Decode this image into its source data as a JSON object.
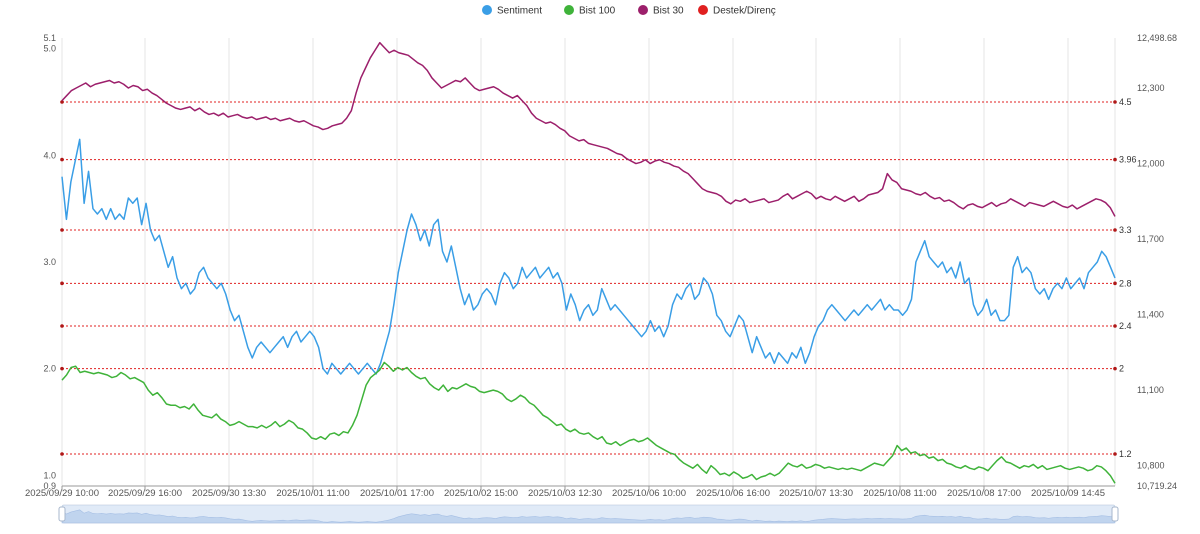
{
  "chart_data": {
    "type": "line",
    "title": "",
    "xlabel": "",
    "ylabel": "",
    "legend_position": "top-center",
    "grid": true,
    "legend": [
      {
        "name": "Sentiment",
        "color": "#3a9ee6"
      },
      {
        "name": "Bist 100",
        "color": "#3fb33a"
      },
      {
        "name": "Bist 30",
        "color": "#9c1f6b"
      },
      {
        "name": "Destek/Direnç",
        "color": "#e02020"
      }
    ],
    "x_ticks": [
      "2025/09/29 10:00",
      "2025/09/29 16:00",
      "2025/09/30 13:30",
      "2025/10/01 11:00",
      "2025/10/01 17:00",
      "2025/10/02 15:00",
      "2025/10/03 12:30",
      "2025/10/06 10:00",
      "2025/10/06 16:00",
      "2025/10/07 13:30",
      "2025/10/08 11:00",
      "2025/10/08 17:00",
      "2025/10/09 14:45"
    ],
    "y_left": {
      "min": 0.9,
      "max": 5.1,
      "tick_labels": [
        "0.9",
        "1.0",
        "2.0",
        "3.0",
        "4.0",
        "5.0",
        "5.1"
      ],
      "tick_values": [
        0.9,
        1.0,
        2.0,
        3.0,
        4.0,
        5.0,
        5.1
      ]
    },
    "y_right": {
      "min": 10719.24,
      "max": 12498.68,
      "tick_labels": [
        "10,719.24",
        "10,800",
        "11,100",
        "11,400",
        "11,700",
        "12,000",
        "12,300",
        "12,498.68"
      ],
      "tick_values": [
        10719.24,
        10800,
        11100,
        11400,
        11700,
        12000,
        12300,
        12498.68
      ]
    },
    "levels": {
      "values": [
        4.5,
        3.96,
        3.3,
        2.8,
        2.4,
        2.0,
        1.2
      ],
      "labels": [
        "4.5",
        "3.96",
        "3.3",
        "2.8",
        "2.4",
        "2",
        "1.2"
      ],
      "color": "#e02020",
      "axis": "left"
    },
    "series": [
      {
        "name": "Sentiment",
        "axis": "left",
        "color": "#3a9ee6",
        "values": [
          3.8,
          3.4,
          3.75,
          3.95,
          4.15,
          3.55,
          3.85,
          3.5,
          3.45,
          3.5,
          3.4,
          3.5,
          3.4,
          3.45,
          3.4,
          3.6,
          3.55,
          3.6,
          3.35,
          3.55,
          3.3,
          3.2,
          3.25,
          3.1,
          2.95,
          3.05,
          2.85,
          2.75,
          2.8,
          2.7,
          2.75,
          2.9,
          2.95,
          2.85,
          2.8,
          2.75,
          2.8,
          2.7,
          2.55,
          2.45,
          2.5,
          2.35,
          2.2,
          2.1,
          2.2,
          2.25,
          2.2,
          2.15,
          2.2,
          2.25,
          2.3,
          2.2,
          2.3,
          2.35,
          2.25,
          2.3,
          2.35,
          2.3,
          2.2,
          2.0,
          1.95,
          2.05,
          2.0,
          1.95,
          2.0,
          2.05,
          2.0,
          1.95,
          2.0,
          2.05,
          2.0,
          1.95,
          2.05,
          2.2,
          2.35,
          2.6,
          2.9,
          3.1,
          3.3,
          3.45,
          3.35,
          3.2,
          3.3,
          3.15,
          3.35,
          3.4,
          3.1,
          3.0,
          3.15,
          2.95,
          2.75,
          2.6,
          2.7,
          2.55,
          2.6,
          2.7,
          2.75,
          2.7,
          2.6,
          2.8,
          2.9,
          2.85,
          2.75,
          2.8,
          2.95,
          2.85,
          2.9,
          2.95,
          2.85,
          2.9,
          2.95,
          2.85,
          2.9,
          2.8,
          2.55,
          2.7,
          2.6,
          2.45,
          2.55,
          2.6,
          2.5,
          2.55,
          2.75,
          2.65,
          2.55,
          2.6,
          2.55,
          2.5,
          2.45,
          2.4,
          2.35,
          2.3,
          2.35,
          2.45,
          2.35,
          2.4,
          2.3,
          2.4,
          2.6,
          2.7,
          2.65,
          2.75,
          2.8,
          2.65,
          2.7,
          2.85,
          2.8,
          2.7,
          2.5,
          2.45,
          2.35,
          2.3,
          2.4,
          2.5,
          2.45,
          2.3,
          2.15,
          2.3,
          2.2,
          2.1,
          2.15,
          2.05,
          2.15,
          2.1,
          2.05,
          2.15,
          2.1,
          2.2,
          2.05,
          2.15,
          2.3,
          2.4,
          2.45,
          2.55,
          2.6,
          2.55,
          2.5,
          2.45,
          2.5,
          2.55,
          2.5,
          2.55,
          2.6,
          2.55,
          2.6,
          2.65,
          2.55,
          2.6,
          2.55,
          2.55,
          2.5,
          2.55,
          2.65,
          3.0,
          3.1,
          3.2,
          3.05,
          3.0,
          2.95,
          3.0,
          2.9,
          2.95,
          2.85,
          3.0,
          2.8,
          2.85,
          2.6,
          2.5,
          2.55,
          2.65,
          2.5,
          2.55,
          2.45,
          2.45,
          2.5,
          2.95,
          3.05,
          2.9,
          2.95,
          2.9,
          2.75,
          2.7,
          2.75,
          2.65,
          2.75,
          2.8,
          2.75,
          2.85,
          2.75,
          2.8,
          2.85,
          2.75,
          2.9,
          2.95,
          3.0,
          3.1,
          3.05,
          2.95,
          2.85
        ]
      },
      {
        "name": "Bist 100",
        "axis": "right",
        "color": "#3fb33a",
        "values": [
          11140,
          11160,
          11190,
          11195,
          11170,
          11175,
          11170,
          11165,
          11170,
          11165,
          11160,
          11150,
          11155,
          11170,
          11160,
          11145,
          11150,
          11140,
          11130,
          11100,
          11080,
          11090,
          11070,
          11045,
          11040,
          11040,
          11030,
          11035,
          11025,
          11045,
          11020,
          11000,
          10995,
          10990,
          11005,
          10985,
          10975,
          10960,
          10965,
          10975,
          10965,
          10955,
          10955,
          10950,
          10960,
          10950,
          10960,
          10975,
          10955,
          10965,
          10980,
          10970,
          10950,
          10945,
          10930,
          10910,
          10905,
          10915,
          10905,
          10925,
          10930,
          10920,
          10935,
          10930,
          10960,
          11000,
          11060,
          11120,
          11150,
          11165,
          11180,
          11210,
          11195,
          11175,
          11190,
          11180,
          11190,
          11170,
          11155,
          11145,
          11150,
          11125,
          11110,
          11100,
          11120,
          11095,
          11110,
          11105,
          11115,
          11125,
          11115,
          11110,
          11095,
          11090,
          11095,
          11100,
          11095,
          11085,
          11065,
          11055,
          11065,
          11080,
          11070,
          11050,
          11040,
          11020,
          11000,
          10990,
          10975,
          10960,
          10965,
          10945,
          10935,
          10945,
          10930,
          10925,
          10930,
          10915,
          10905,
          10915,
          10890,
          10885,
          10895,
          10880,
          10890,
          10900,
          10905,
          10895,
          10900,
          10910,
          10895,
          10880,
          10870,
          10860,
          10850,
          10845,
          10825,
          10810,
          10800,
          10790,
          10805,
          10785,
          10770,
          10800,
          10785,
          10765,
          10770,
          10760,
          10775,
          10765,
          10750,
          10755,
          10765,
          10745,
          10755,
          10760,
          10770,
          10760,
          10770,
          10790,
          10810,
          10800,
          10795,
          10805,
          10790,
          10795,
          10805,
          10800,
          10790,
          10795,
          10790,
          10785,
          10790,
          10785,
          10790,
          10785,
          10780,
          10790,
          10800,
          10810,
          10805,
          10800,
          10820,
          10840,
          10880,
          10860,
          10870,
          10850,
          10855,
          10840,
          10845,
          10830,
          10835,
          10820,
          10825,
          10810,
          10805,
          10795,
          10790,
          10800,
          10790,
          10785,
          10795,
          10790,
          10780,
          10800,
          10820,
          10835,
          10815,
          10810,
          10800,
          10790,
          10800,
          10795,
          10805,
          10790,
          10800,
          10785,
          10790,
          10795,
          10800,
          10790,
          10785,
          10790,
          10795,
          10790,
          10780,
          10785,
          10800,
          10795,
          10780,
          10760,
          10730
        ]
      },
      {
        "name": "Bist 30",
        "axis": "right",
        "color": "#9c1f6b",
        "values": [
          12250,
          12270,
          12290,
          12300,
          12310,
          12320,
          12305,
          12315,
          12320,
          12325,
          12330,
          12320,
          12325,
          12315,
          12300,
          12310,
          12305,
          12290,
          12295,
          12280,
          12270,
          12255,
          12240,
          12230,
          12220,
          12215,
          12220,
          12225,
          12210,
          12220,
          12205,
          12195,
          12200,
          12190,
          12200,
          12185,
          12190,
          12195,
          12185,
          12180,
          12185,
          12175,
          12180,
          12185,
          12175,
          12180,
          12170,
          12175,
          12180,
          12170,
          12165,
          12170,
          12160,
          12150,
          12145,
          12135,
          12140,
          12150,
          12155,
          12160,
          12180,
          12210,
          12280,
          12340,
          12380,
          12420,
          12450,
          12480,
          12460,
          12440,
          12450,
          12440,
          12435,
          12430,
          12415,
          12400,
          12390,
          12370,
          12340,
          12320,
          12300,
          12310,
          12320,
          12330,
          12325,
          12340,
          12320,
          12300,
          12290,
          12295,
          12300,
          12305,
          12295,
          12280,
          12270,
          12260,
          12270,
          12250,
          12230,
          12200,
          12180,
          12170,
          12160,
          12165,
          12155,
          12140,
          12130,
          12110,
          12100,
          12090,
          12095,
          12080,
          12075,
          12070,
          12065,
          12060,
          12050,
          12040,
          12035,
          12020,
          12010,
          12000,
          12005,
          12015,
          12000,
          12010,
          12015,
          12005,
          12000,
          11990,
          11985,
          11970,
          11960,
          11940,
          11920,
          11900,
          11890,
          11885,
          11880,
          11870,
          11850,
          11840,
          11855,
          11850,
          11860,
          11845,
          11850,
          11855,
          11860,
          11845,
          11850,
          11855,
          11870,
          11880,
          11860,
          11870,
          11880,
          11890,
          11880,
          11860,
          11870,
          11860,
          11855,
          11870,
          11860,
          11850,
          11860,
          11870,
          11850,
          11860,
          11875,
          11880,
          11885,
          11900,
          11960,
          11935,
          11925,
          11900,
          11895,
          11890,
          11880,
          11875,
          11885,
          11870,
          11860,
          11865,
          11850,
          11855,
          11845,
          11830,
          11820,
          11835,
          11840,
          11830,
          11825,
          11835,
          11845,
          11830,
          11840,
          11845,
          11860,
          11850,
          11840,
          11830,
          11845,
          11840,
          11835,
          11830,
          11840,
          11850,
          11840,
          11830,
          11825,
          11835,
          11820,
          11830,
          11840,
          11850,
          11860,
          11855,
          11845,
          11825,
          11790
        ]
      }
    ]
  }
}
